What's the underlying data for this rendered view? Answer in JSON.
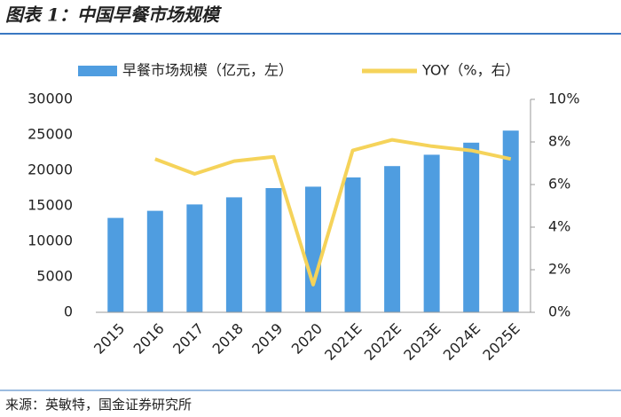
{
  "title": "图表 1：中国早餐市场规模",
  "source": "来源：英敏特，国金证券研究所",
  "chart_data": {
    "type": "bar-line",
    "categories": [
      "2015",
      "2016",
      "2017",
      "2018",
      "2019",
      "2020",
      "2021E",
      "2022E",
      "2023E",
      "2024E",
      "2025E"
    ],
    "series": [
      {
        "name": "早餐市场规模（亿元，左）",
        "type": "bar",
        "color": "#4f9de0",
        "values": [
          13300,
          14300,
          15200,
          16200,
          17500,
          17700,
          19000,
          20600,
          22200,
          23900,
          25600
        ]
      },
      {
        "name": "YOY（%，右）",
        "type": "line",
        "axis": "y2",
        "color": "#f5d35a",
        "values": [
          null,
          7.2,
          6.5,
          7.1,
          7.3,
          1.3,
          7.6,
          8.1,
          7.8,
          7.6,
          7.2
        ]
      }
    ],
    "ylim": [
      0,
      30000
    ],
    "yticks": [
      0,
      5000,
      10000,
      15000,
      20000,
      25000,
      30000
    ],
    "y2lim": [
      0,
      10
    ],
    "y2ticks": [
      {
        "value": 0,
        "label": "0%"
      },
      {
        "value": 2,
        "label": "2%"
      },
      {
        "value": 4,
        "label": "4%"
      },
      {
        "value": 6,
        "label": "6%"
      },
      {
        "value": 8,
        "label": "8%"
      },
      {
        "value": 10,
        "label": "10%"
      }
    ],
    "legend": "top"
  }
}
